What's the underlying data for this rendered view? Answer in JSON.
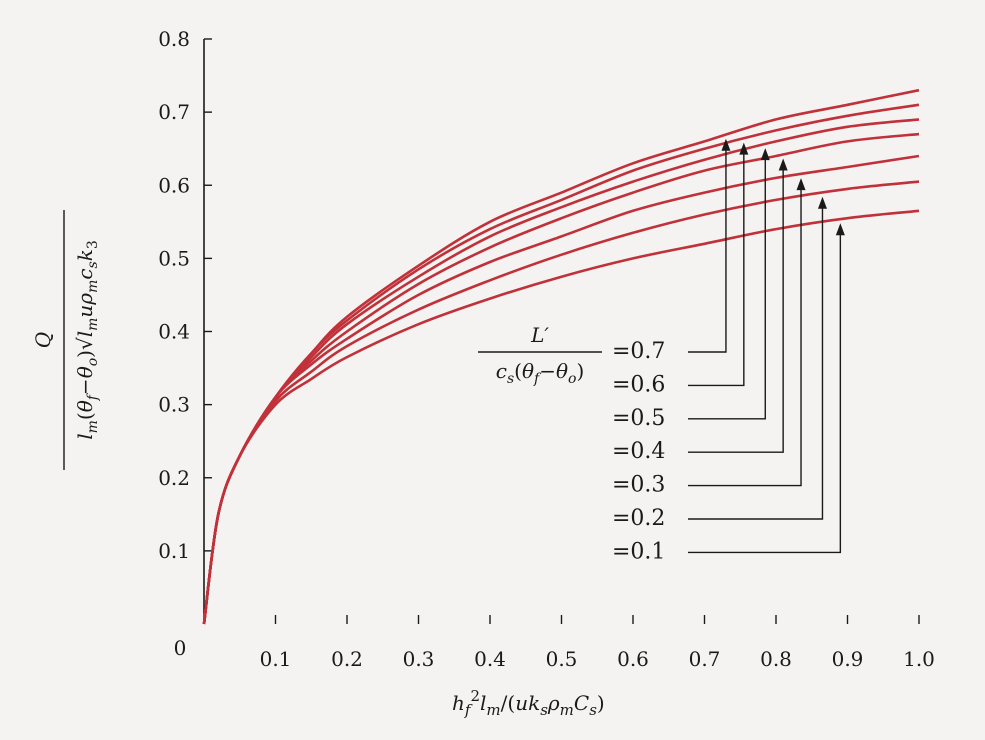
{
  "chart_data": {
    "type": "line",
    "xlabel": "h_f²l_m/(uk_sρ_mC_s)",
    "ylabel": "Q / l_m(θ_f−θ_o)√(l_mup_mc_sk_3)",
    "xlim": [
      0,
      1.0
    ],
    "ylim": [
      0,
      0.8
    ],
    "x_ticks": [
      "0.1",
      "0.2",
      "0.3",
      "0.4",
      "0.5",
      "0.6",
      "0.7",
      "0.8",
      "0.9",
      "1.0"
    ],
    "y_ticks": [
      "0.1",
      "0.2",
      "0.3",
      "0.4",
      "0.5",
      "0.6",
      "0.7",
      "0.8"
    ],
    "origin_label": "0",
    "grid": false,
    "legend_param": "L′ / c_s(θ_f−θ_o)",
    "legend_placement": "center-right",
    "line_color": "#c0313a",
    "x": [
      0,
      0.02,
      0.05,
      0.1,
      0.15,
      0.2,
      0.3,
      0.4,
      0.5,
      0.6,
      0.7,
      0.8,
      0.9,
      1.0
    ],
    "series": [
      {
        "name": "=0.7",
        "values": [
          0,
          0.15,
          0.23,
          0.31,
          0.37,
          0.42,
          0.49,
          0.55,
          0.59,
          0.63,
          0.66,
          0.69,
          0.71,
          0.73
        ]
      },
      {
        "name": "=0.6",
        "values": [
          0,
          0.15,
          0.23,
          0.31,
          0.37,
          0.415,
          0.485,
          0.54,
          0.58,
          0.62,
          0.65,
          0.675,
          0.695,
          0.71
        ]
      },
      {
        "name": "=0.5",
        "values": [
          0,
          0.15,
          0.23,
          0.31,
          0.365,
          0.41,
          0.475,
          0.53,
          0.57,
          0.605,
          0.635,
          0.66,
          0.68,
          0.69
        ]
      },
      {
        "name": "=0.4",
        "values": [
          0,
          0.15,
          0.23,
          0.31,
          0.36,
          0.4,
          0.465,
          0.515,
          0.555,
          0.59,
          0.62,
          0.64,
          0.66,
          0.67
        ]
      },
      {
        "name": "=0.3",
        "values": [
          0,
          0.15,
          0.23,
          0.31,
          0.355,
          0.39,
          0.45,
          0.495,
          0.53,
          0.565,
          0.59,
          0.61,
          0.625,
          0.64
        ]
      },
      {
        "name": "=0.2",
        "values": [
          0,
          0.15,
          0.23,
          0.305,
          0.345,
          0.38,
          0.43,
          0.47,
          0.505,
          0.535,
          0.56,
          0.58,
          0.595,
          0.605
        ]
      },
      {
        "name": "=0.1",
        "values": [
          0,
          0.15,
          0.23,
          0.3,
          0.335,
          0.365,
          0.41,
          0.445,
          0.475,
          0.5,
          0.52,
          0.54,
          0.555,
          0.565
        ]
      }
    ],
    "annotation_arrow_x": [
      0.73,
      0.755,
      0.785,
      0.81,
      0.835,
      0.865,
      0.89
    ]
  }
}
